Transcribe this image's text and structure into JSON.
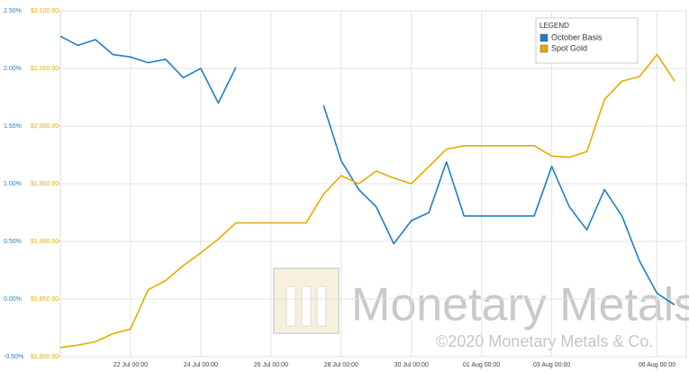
{
  "chart_data": {
    "type": "line",
    "x": [
      "20 Jul 00:00",
      "20 Jul 12:00",
      "21 Jul 00:00",
      "21 Jul 12:00",
      "22 Jul 00:00",
      "22 Jul 12:00",
      "23 Jul 00:00",
      "23 Jul 12:00",
      "24 Jul 00:00",
      "24 Jul 12:00",
      "25 Jul 00:00",
      "25 Jul 12:00",
      "26 Jul 00:00",
      "26 Jul 12:00",
      "27 Jul 00:00",
      "27 Jul 12:00",
      "28 Jul 00:00",
      "28 Jul 12:00",
      "29 Jul 00:00",
      "29 Jul 12:00",
      "30 Jul 00:00",
      "30 Jul 12:00",
      "31 Jul 00:00",
      "31 Jul 12:00",
      "01 Aug 00:00",
      "01 Aug 12:00",
      "02 Aug 00:00",
      "02 Aug 12:00",
      "03 Aug 00:00",
      "03 Aug 12:00",
      "04 Aug 00:00",
      "04 Aug 12:00",
      "05 Aug 00:00",
      "05 Aug 12:00",
      "06 Aug 00:00",
      "06 Aug 12:00"
    ],
    "series": [
      {
        "name": "October Basis",
        "color": "#1f7fc4",
        "values": [
          2.28,
          2.2,
          2.25,
          2.12,
          2.1,
          2.05,
          2.08,
          1.92,
          2.0,
          1.7,
          2.01,
          null,
          null,
          null,
          null,
          1.68,
          1.2,
          0.95,
          0.8,
          0.48,
          0.68,
          0.75,
          1.19,
          0.72,
          0.72,
          0.72,
          0.72,
          0.72,
          1.15,
          0.8,
          0.6,
          0.95,
          0.72,
          0.33,
          0.05,
          -0.05
        ]
      },
      {
        "name": "Spot Gold",
        "color": "#e6ac00",
        "axis": "y2",
        "values": [
          1808,
          1810,
          1813,
          1820,
          1824,
          1858,
          1866,
          1879,
          1890,
          1902,
          1916,
          1916,
          1916,
          1916,
          1916,
          1941,
          1957,
          1950,
          1961,
          1955,
          1950,
          1965,
          1980,
          1983,
          1983,
          1983,
          1983,
          1983,
          1974,
          1973,
          1978,
          2023,
          2039,
          2043,
          2062,
          2039
        ]
      }
    ],
    "xlim": [
      "20 Jul 00:00",
      "06 Aug 20:00"
    ],
    "xticks": [
      "22 Jul 00:00",
      "24 Jul 00:00",
      "26 Jul 00:00",
      "28 Jul 00:00",
      "30 Jul 00:00",
      "01 Aug 00:00",
      "03 Aug 00:00",
      "06 Aug 00:00"
    ],
    "ylim": [
      -0.5,
      2.5
    ],
    "yticks": [
      {
        "value": -0.5,
        "label": "-0.50%"
      },
      {
        "value": 0,
        "label": "0.00%"
      },
      {
        "value": 0.5,
        "label": "0.50%"
      },
      {
        "value": 1,
        "label": "1.00%"
      },
      {
        "value": 1.5,
        "label": "1.50%"
      },
      {
        "value": 2,
        "label": "2.00%"
      },
      {
        "value": 2.5,
        "label": "2.50%"
      }
    ],
    "y2lim": [
      1800,
      2100
    ],
    "y2ticks": [
      {
        "value": 1800,
        "label": "$1,800.00"
      },
      {
        "value": 1850,
        "label": "$1,850.00"
      },
      {
        "value": 1900,
        "label": "$1,900.00"
      },
      {
        "value": 1950,
        "label": "$1,950.00"
      },
      {
        "value": 2000,
        "label": "$2,000.00"
      },
      {
        "value": 2050,
        "label": "$2,050.00"
      },
      {
        "value": 2100,
        "label": "$2,100.00"
      }
    ],
    "grid": true,
    "legend_title": "LEGEND",
    "legend_position": "top-right",
    "watermark": "Monetary Metals",
    "copyright": "©2020 Monetary Metals & Co."
  }
}
